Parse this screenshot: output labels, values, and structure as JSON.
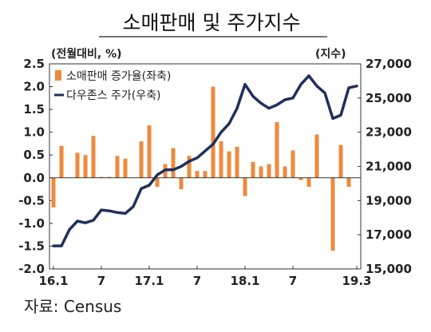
{
  "chart_data": {
    "type": "bar+line",
    "title": "소매판매 및 주가지수",
    "left_unit_label": "(전월대비, %)",
    "right_unit_label": "(지수)",
    "source": "자료: Census",
    "x_tick_labels": [
      "16.1",
      "7",
      "17.1",
      "7",
      "18.1",
      "7",
      "19.3"
    ],
    "left_axis": {
      "min": -2.0,
      "max": 2.5,
      "ticks": [
        "2.5",
        "2.0",
        "1.5",
        "1.0",
        "0.5",
        "0.0",
        "-0.5",
        "-1.0",
        "-1.5",
        "-2.0"
      ]
    },
    "right_axis": {
      "min": 15000,
      "max": 27000,
      "ticks": [
        "27,000",
        "25,000",
        "23,000",
        "21,000",
        "19,000",
        "17,000",
        "15,000"
      ]
    },
    "series": [
      {
        "name": "소매판매 증가율(좌축)",
        "type": "bar",
        "axis": "left",
        "color": "#ee8a3c",
        "x": [
          "2016-01",
          "2016-02",
          "2016-03",
          "2016-04",
          "2016-05",
          "2016-06",
          "2016-07",
          "2016-08",
          "2016-09",
          "2016-10",
          "2016-11",
          "2016-12",
          "2017-01",
          "2017-02",
          "2017-03",
          "2017-04",
          "2017-05",
          "2017-06",
          "2017-07",
          "2017-08",
          "2017-09",
          "2017-10",
          "2017-11",
          "2017-12",
          "2018-01",
          "2018-02",
          "2018-03",
          "2018-04",
          "2018-05",
          "2018-06",
          "2018-07",
          "2018-08",
          "2018-09",
          "2018-10",
          "2018-11",
          "2018-12",
          "2019-01",
          "2019-02",
          "2019-03"
        ],
        "values": [
          -0.65,
          0.7,
          0.0,
          0.55,
          0.5,
          0.92,
          0.02,
          0.02,
          0.48,
          0.42,
          0.0,
          0.8,
          1.15,
          -0.2,
          0.3,
          0.65,
          -0.25,
          0.48,
          0.15,
          0.15,
          2.0,
          0.8,
          0.58,
          0.68,
          -0.4,
          0.35,
          0.25,
          0.3,
          1.22,
          0.25,
          0.6,
          -0.05,
          -0.2,
          0.95,
          0.0,
          -1.6,
          0.72,
          -0.2,
          0.0
        ]
      },
      {
        "name": "다우존스 주가(우축)",
        "type": "line",
        "axis": "right",
        "color": "#1f2f5c",
        "x": [
          "2016-01",
          "2016-02",
          "2016-03",
          "2016-04",
          "2016-05",
          "2016-06",
          "2016-07",
          "2016-08",
          "2016-09",
          "2016-10",
          "2016-11",
          "2016-12",
          "2017-01",
          "2017-02",
          "2017-03",
          "2017-04",
          "2017-05",
          "2017-06",
          "2017-07",
          "2017-08",
          "2017-09",
          "2017-10",
          "2017-11",
          "2017-12",
          "2018-01",
          "2018-02",
          "2018-03",
          "2018-04",
          "2018-05",
          "2018-06",
          "2018-07",
          "2018-08",
          "2018-09",
          "2018-10",
          "2018-11",
          "2018-12",
          "2019-01",
          "2019-02",
          "2019-03"
        ],
        "values": [
          16350,
          16350,
          17300,
          17800,
          17700,
          17850,
          18450,
          18400,
          18300,
          18250,
          18650,
          19700,
          19900,
          20500,
          20800,
          20800,
          21000,
          21300,
          21500,
          21900,
          22300,
          23000,
          23500,
          24400,
          25800,
          25100,
          24700,
          24400,
          24600,
          24900,
          25000,
          25800,
          26300,
          25700,
          25300,
          23800,
          24000,
          25600,
          25700
        ]
      }
    ],
    "grid": false,
    "legend_position": "top-left"
  }
}
